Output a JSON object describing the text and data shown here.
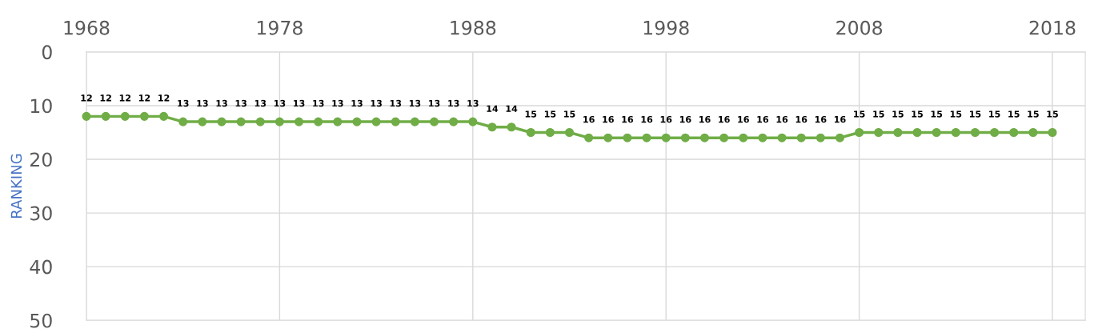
{
  "chart_data": {
    "type": "line",
    "ylabel": "RANKING",
    "x": [
      1968,
      1969,
      1970,
      1971,
      1972,
      1973,
      1974,
      1975,
      1976,
      1977,
      1978,
      1979,
      1980,
      1981,
      1982,
      1983,
      1984,
      1985,
      1986,
      1987,
      1988,
      1989,
      1990,
      1991,
      1992,
      1993,
      1994,
      1995,
      1996,
      1997,
      1998,
      1999,
      2000,
      2001,
      2002,
      2003,
      2004,
      2005,
      2006,
      2007,
      2008,
      2009,
      2010,
      2011,
      2012,
      2013,
      2014,
      2015,
      2016,
      2017,
      2018
    ],
    "series": [
      {
        "color": "#70ad47",
        "values": [
          12,
          12,
          12,
          12,
          12,
          13,
          13,
          13,
          13,
          13,
          13,
          13,
          13,
          13,
          13,
          13,
          13,
          13,
          13,
          13,
          13,
          14,
          14,
          15,
          15,
          15,
          16,
          16,
          16,
          16,
          16,
          16,
          16,
          16,
          16,
          16,
          16,
          16,
          16,
          16,
          15,
          15,
          15,
          15,
          15,
          15,
          15,
          15,
          15,
          15,
          15
        ]
      }
    ],
    "xlim": [
      1968,
      2019.7
    ],
    "xticks": [
      1968,
      1978,
      1988,
      1998,
      2008,
      2018
    ],
    "ylim": [
      50,
      0
    ],
    "yticks": [
      0,
      10,
      20,
      30,
      40,
      50
    ],
    "grid": true,
    "marker": "circle",
    "line_style": "solid",
    "data_labels": true
  }
}
